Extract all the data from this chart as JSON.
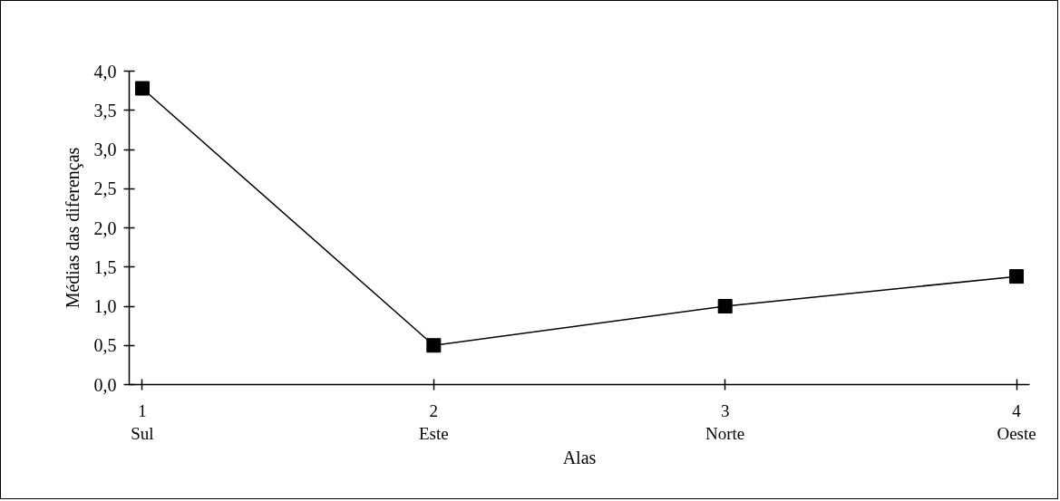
{
  "chart_data": {
    "type": "line",
    "xlabel": "Alas",
    "ylabel": "Médias das diferenças",
    "categories": [
      "1\nSul",
      "2\nEste",
      "3\nNorte",
      "4\nOeste"
    ],
    "series": [
      {
        "color": "#000000",
        "values": [
          3.78,
          0.5,
          1.0,
          1.38
        ]
      }
    ],
    "ylim": [
      0,
      4
    ],
    "yticks": [
      {
        "value": 0,
        "label": "0,0"
      },
      {
        "value": 0.5,
        "label": "0,5"
      },
      {
        "value": 1,
        "label": "1,0"
      },
      {
        "value": 1.5,
        "label": "1,5"
      },
      {
        "value": 2,
        "label": "2,0"
      },
      {
        "value": 2.5,
        "label": "2,5"
      },
      {
        "value": 3,
        "label": "3,0"
      },
      {
        "value": 3.5,
        "label": "3,5"
      },
      {
        "value": 4,
        "label": "4,0"
      }
    ],
    "marker": "square",
    "line_style": "solid"
  }
}
